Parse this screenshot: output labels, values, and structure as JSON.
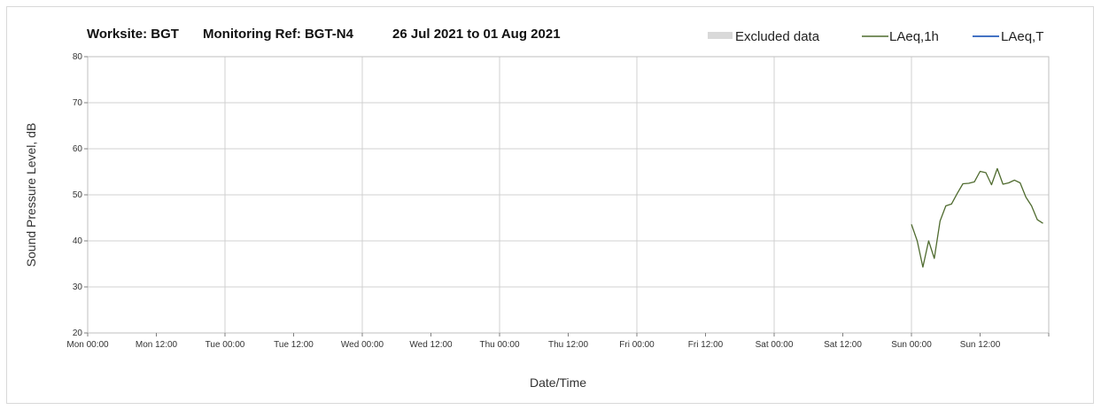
{
  "chart_data": {
    "type": "line",
    "title_parts": [
      "Worksite: BGT",
      "Monitoring Ref: BGT-N4",
      "26 Jul 2021 to 01 Aug 2021"
    ],
    "xlabel": "Date/Time",
    "ylabel": "Sound Pressure Level, dB",
    "ylim": [
      20,
      80
    ],
    "yticks": [
      "20",
      "30",
      "40",
      "50",
      "60",
      "70",
      "80"
    ],
    "xlim_hours": [
      0,
      168
    ],
    "xticks": [
      "Mon 00:00",
      "Mon 12:00",
      "Tue 00:00",
      "Tue 12:00",
      "Wed 00:00",
      "Wed 12:00",
      "Thu 00:00",
      "Thu 12:00",
      "Fri 00:00",
      "Fri 12:00",
      "Sat 00:00",
      "Sat 12:00",
      "Sun 00:00",
      "Sun 12:00"
    ],
    "grid": "vertical and horizontal",
    "legend_position": "top-right",
    "legend": [
      {
        "label": "Excluded data",
        "kind": "area",
        "color": "#d9d9d9"
      },
      {
        "label": "LAeq,1h",
        "kind": "line",
        "color": "#4f6b2f"
      },
      {
        "label": "LAeq,T",
        "kind": "line",
        "color": "#4472c4"
      }
    ],
    "series": [
      {
        "name": "LAeq,1h",
        "color": "#4f6b2f",
        "x_label": "hours from Mon 00:00",
        "x": [
          144,
          145,
          146,
          147,
          148,
          149,
          150,
          151,
          152,
          153,
          154,
          155,
          156,
          157,
          158,
          159,
          160,
          161,
          162,
          163,
          164,
          165,
          166,
          167
        ],
        "y": [
          43.6,
          40.0,
          34.3,
          40.0,
          36.2,
          44.3,
          47.6,
          48.0,
          50.3,
          52.4,
          52.5,
          52.8,
          55.1,
          54.8,
          52.2,
          55.7,
          52.3,
          52.6,
          53.2,
          52.6,
          49.5,
          47.6,
          44.6,
          43.8
        ]
      },
      {
        "name": "LAeq,T",
        "color": "#4472c4",
        "x": [],
        "y": []
      }
    ]
  }
}
